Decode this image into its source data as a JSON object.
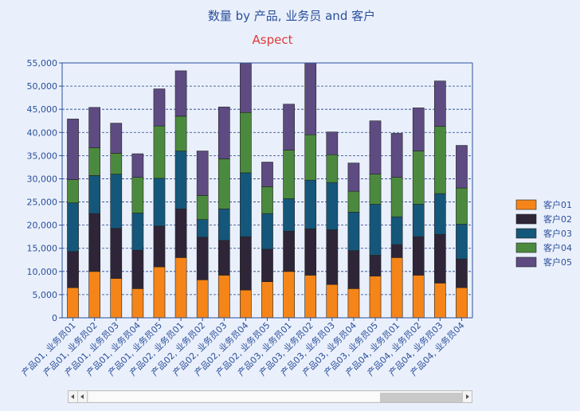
{
  "chart_data": {
    "type": "bar",
    "stacked": true,
    "title": "数量 by 产品, 业务员 and 客户",
    "subtitle": "Aspect",
    "ylim": [
      0,
      55000
    ],
    "yticks": [
      "0",
      "5,000",
      "10,000",
      "15,000",
      "20,000",
      "25,000",
      "30,000",
      "35,000",
      "40,000",
      "45,000",
      "50,000",
      "55,000"
    ],
    "grid": true,
    "legend_position": "right",
    "categories": [
      "产品01, 业务员01",
      "产品01, 业务员02",
      "产品01, 业务员03",
      "产品01, 业务员04",
      "产品01, 业务员05",
      "产品02, 业务员01",
      "产品02, 业务员02",
      "产品02, 业务员03",
      "产品02, 业务员04",
      "产品02, 业务员05",
      "产品03, 业务员01",
      "产品03, 业务员02",
      "产品03, 业务员03",
      "产品03, 业务员04",
      "产品03, 业务员05",
      "产品04, 业务员01",
      "产品04, 业务员02",
      "产品04, 业务员03",
      "产品04, 业务员04"
    ],
    "series": [
      {
        "name": "客户01",
        "color": "#f58518",
        "values": [
          6500,
          10000,
          8500,
          6300,
          11000,
          13000,
          8200,
          9200,
          6000,
          7800,
          10000,
          9200,
          7200,
          6300,
          9000,
          13000,
          9200,
          7500,
          6500
        ]
      },
      {
        "name": "客户02",
        "color": "#2f2538",
        "values": [
          7800,
          12500,
          10800,
          8300,
          8800,
          10500,
          9200,
          7500,
          11500,
          7000,
          8700,
          10000,
          11800,
          8200,
          4500,
          2800,
          8300,
          10500,
          6200
        ]
      },
      {
        "name": "客户03",
        "color": "#15577a",
        "values": [
          10500,
          8200,
          11700,
          8000,
          10300,
          12500,
          3800,
          6800,
          13800,
          7700,
          7000,
          10500,
          10200,
          8300,
          11000,
          6000,
          7000,
          8800,
          7500
        ]
      },
      {
        "name": "客户04",
        "color": "#4b8a3e",
        "values": [
          5000,
          6000,
          4500,
          7700,
          11300,
          7500,
          5200,
          10800,
          13000,
          5800,
          10500,
          9800,
          6000,
          4500,
          6500,
          8500,
          11500,
          14500,
          7800
        ]
      },
      {
        "name": "客户05",
        "color": "#5e4b82",
        "values": [
          13100,
          8700,
          6500,
          5100,
          8000,
          9800,
          9600,
          11200,
          10700,
          5300,
          9900,
          15500,
          4900,
          6100,
          11500,
          9500,
          9300,
          9800,
          9200
        ]
      }
    ]
  },
  "scrollbar": {
    "position": 0.78,
    "extent": 0.22
  }
}
